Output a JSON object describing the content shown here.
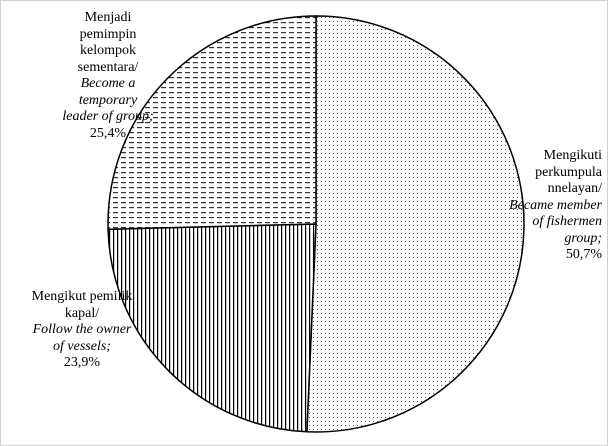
{
  "chart_data": {
    "type": "pie",
    "categories": [
      "Mengikuti perkumpula nnelayan/",
      "Mengikut pemilik kapal/",
      "Menjadi pemimpin kelompok sementara/"
    ],
    "categories_en": [
      "Became member of fishermen group;",
      "Follow the owner of vessels;",
      "Become a temporary leader of group;"
    ],
    "values": [
      50.7,
      23.9,
      25.4
    ],
    "value_labels": [
      "50,7%",
      "23,9%",
      "25,4%"
    ],
    "patterns": [
      "dots",
      "vertical-lines",
      "dashes"
    ],
    "color": "#000000"
  }
}
